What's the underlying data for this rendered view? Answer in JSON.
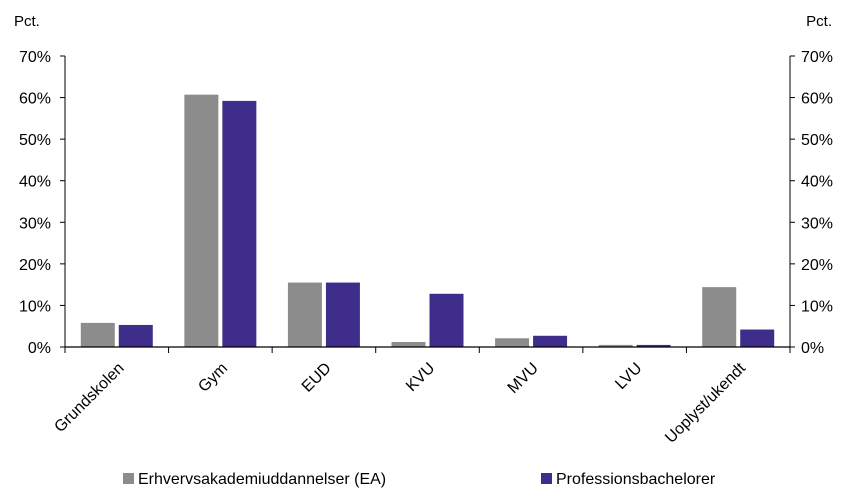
{
  "chart_data": {
    "type": "bar",
    "categories": [
      "Grundskolen",
      "Gym",
      "EUD",
      "KVU",
      "MVU",
      "LVU",
      "Uoplyst/ukendt"
    ],
    "series": [
      {
        "name": "Erhvervsakademiuddannelser (EA)",
        "color": "#8c8c8c",
        "values": [
          5.8,
          60.7,
          15.5,
          1.2,
          2.1,
          0.5,
          14.4
        ]
      },
      {
        "name": "Professionsbachelorer",
        "color": "#3f2d8c",
        "values": [
          5.3,
          59.2,
          15.5,
          12.8,
          2.7,
          0.5,
          4.2
        ]
      }
    ],
    "y_unit_left": "Pct.",
    "y_unit_right": "Pct.",
    "ylim": [
      0,
      70
    ],
    "y_ticks": [
      "0%",
      "10%",
      "20%",
      "30%",
      "40%",
      "50%",
      "60%",
      "70%"
    ],
    "grid": false,
    "legend_position": "bottom"
  }
}
